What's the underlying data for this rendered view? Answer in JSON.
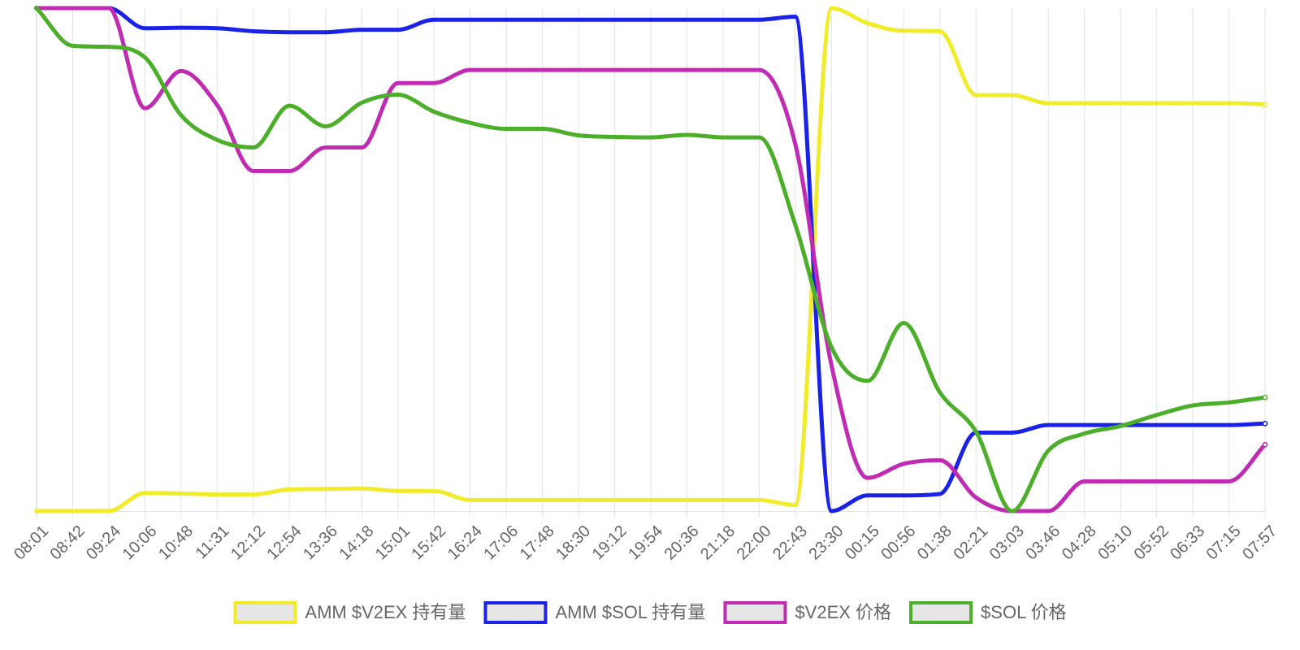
{
  "chart_data": {
    "type": "line",
    "title": "",
    "xlabel": "",
    "ylabel": "",
    "categories": [
      "08:01",
      "08:42",
      "09:24",
      "10:06",
      "10:48",
      "11:31",
      "12:12",
      "12:54",
      "13:36",
      "14:18",
      "15:01",
      "15:42",
      "16:24",
      "17:06",
      "17:48",
      "18:30",
      "19:12",
      "19:54",
      "20:36",
      "21:18",
      "22:00",
      "22:43",
      "23:30",
      "00:15",
      "00:56",
      "01:38",
      "02:21",
      "03:03",
      "03:46",
      "04:28",
      "05:10",
      "05:52",
      "06:33",
      "07:15",
      "07:57"
    ],
    "ylim": [
      0,
      100
    ],
    "y_axis_shown": false,
    "grid": "vertical",
    "legend_position": "bottom",
    "series": [
      {
        "name": "AMM $V2EX 持有量",
        "color": "#f0ec2a",
        "values": [
          0,
          0,
          0,
          3.6,
          3.5,
          3.3,
          3.3,
          4.3,
          4.4,
          4.5,
          4.0,
          4.0,
          2.2,
          2.2,
          2.2,
          2.2,
          2.2,
          2.2,
          2.2,
          2.2,
          2.2,
          1.2,
          100,
          97,
          95.5,
          95.4,
          82.7,
          82.7,
          81.1,
          81.1,
          81.1,
          81.1,
          81.1,
          81.1,
          80.9
        ]
      },
      {
        "name": "AMM $SOL 持有量",
        "color": "#1a22e6",
        "values": [
          100,
          100,
          100,
          96,
          96.1,
          96,
          95.4,
          95.2,
          95.2,
          95.7,
          95.7,
          97.7,
          97.7,
          97.7,
          97.7,
          97.7,
          97.7,
          97.7,
          97.7,
          97.7,
          97.7,
          98.3,
          0,
          3.1,
          3.1,
          3.4,
          15.6,
          15.6,
          17.1,
          17.1,
          17.1,
          17.1,
          17.1,
          17.1,
          17.4
        ]
      },
      {
        "name": "$V2EX 价格",
        "color": "#c12bb4",
        "values": [
          100,
          100,
          100,
          80.1,
          87.5,
          80.7,
          67.6,
          67.6,
          72.3,
          72.3,
          85.1,
          85.1,
          87.7,
          87.7,
          87.7,
          87.7,
          87.7,
          87.7,
          87.7,
          87.7,
          87.7,
          72.9,
          29.0,
          6.6,
          9.4,
          10.1,
          2.7,
          0,
          0,
          5.9,
          5.9,
          5.9,
          5.9,
          5.9,
          13.2
        ]
      },
      {
        "name": "$SOL 价格",
        "color": "#4caf2a",
        "values": [
          100,
          92.5,
          92.3,
          90.2,
          78.7,
          73.8,
          72.3,
          80.6,
          76.5,
          81.2,
          82.8,
          79.4,
          77.2,
          76.0,
          76.0,
          74.7,
          74.4,
          74.3,
          74.8,
          74.3,
          74.3,
          56.9,
          32.6,
          25.9,
          37.4,
          23.6,
          15.8,
          0,
          12.0,
          15.4,
          16.9,
          19.1,
          21.0,
          21.6,
          22.6
        ]
      }
    ]
  }
}
